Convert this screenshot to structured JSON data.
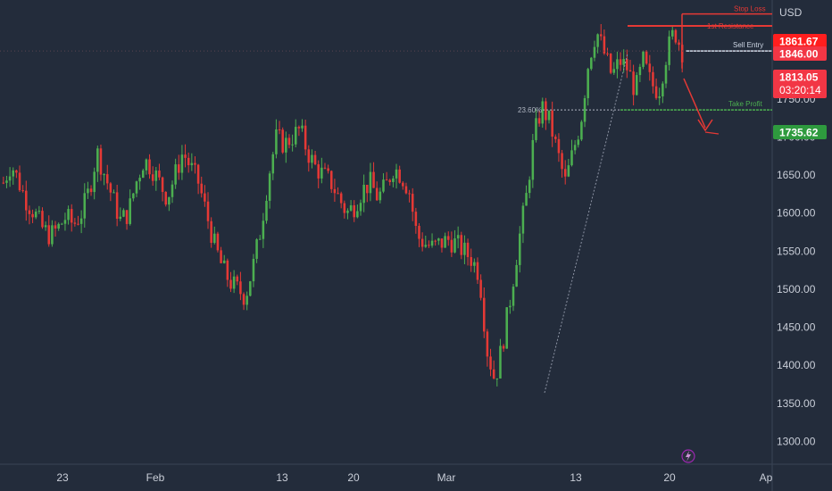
{
  "chart_data": {
    "type": "candlestick",
    "currency": "USD",
    "ylim": [
      1270,
      1880
    ],
    "y_ticks": [
      1300,
      1350,
      1400,
      1450,
      1500,
      1550,
      1600,
      1650,
      1700,
      1750
    ],
    "x_ticks": [
      "23",
      "Feb",
      "13",
      "20",
      "Mar",
      "13",
      "20",
      "Ap"
    ],
    "colors": {
      "up": "#4caf50",
      "down": "#e53935",
      "background": "#232c3b"
    },
    "trend_points": [
      1640,
      1665,
      1640,
      1615,
      1600,
      1580,
      1570,
      1580,
      1595,
      1585,
      1600,
      1630,
      1680,
      1650,
      1620,
      1590,
      1600,
      1640,
      1670,
      1660,
      1640,
      1620,
      1650,
      1680,
      1660,
      1640,
      1600,
      1560,
      1530,
      1510,
      1500,
      1490,
      1530,
      1580,
      1650,
      1700,
      1690,
      1700,
      1710,
      1680,
      1660,
      1650,
      1640,
      1620,
      1600,
      1610,
      1630,
      1640,
      1620,
      1635,
      1660,
      1650,
      1630,
      1570,
      1560,
      1555,
      1560,
      1565,
      1560,
      1550,
      1540,
      1520,
      1420,
      1380,
      1430,
      1490,
      1560,
      1620,
      1700,
      1740,
      1720,
      1680,
      1640,
      1680,
      1720,
      1800,
      1840,
      1810,
      1780,
      1800,
      1790,
      1760,
      1800,
      1770,
      1760,
      1810,
      1840,
      1813
    ],
    "price_tags": [
      {
        "label": "1861.67",
        "value": 1861.67,
        "color": "#ff1e1e"
      },
      {
        "label": "1846.00",
        "value": 1846.0,
        "color": "#f23645"
      },
      {
        "label": "1813.05",
        "value": 1813.05,
        "color": "#f23645",
        "sublabel": "03:20:14"
      },
      {
        "label": "1735.62",
        "value": 1735.62,
        "color": "#2e9a3e"
      }
    ],
    "annotations": [
      {
        "label": "Stop Loss",
        "value": 1861.67,
        "color": "#e53935"
      },
      {
        "label": "1st Resistance",
        "value": 1846.0,
        "color": "#e53935"
      },
      {
        "label": "Sell Entry",
        "value": 1813.05,
        "color": "#cfd8e6"
      },
      {
        "label": "Take Profit",
        "value": 1735.62,
        "color": "#4caf50"
      },
      {
        "label": "23.60%",
        "value": 1735.62,
        "color": "#b0b6c2"
      }
    ]
  }
}
